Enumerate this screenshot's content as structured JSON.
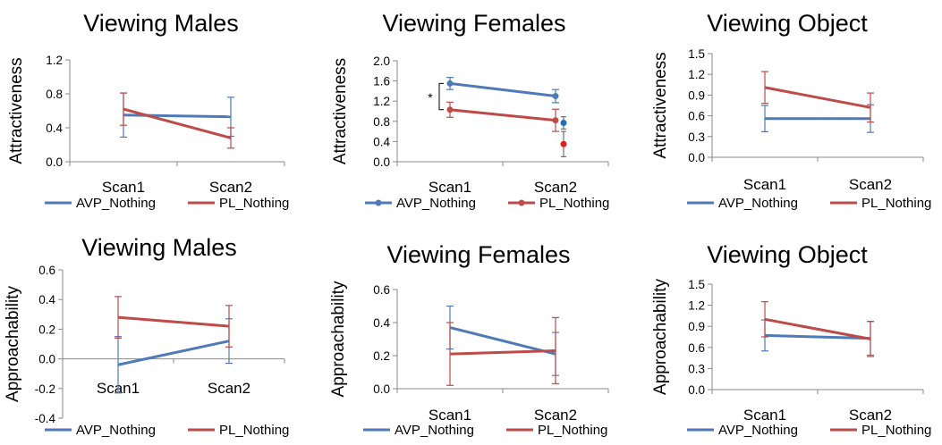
{
  "colors": {
    "avp": "#4F7AB8",
    "pl": "#BE4B48",
    "avp_extra": "#1F6FB5",
    "pl_extra": "#E0201B"
  },
  "chart_data": [
    {
      "type": "line",
      "title": "Viewing Males",
      "ylabel": "Attractiveness",
      "ylim": [
        0,
        1.2
      ],
      "yticks": [
        "0.0",
        "0.4",
        "0.8",
        "1.2"
      ],
      "markers": false,
      "categories": [
        "Scan1",
        "Scan2"
      ],
      "series": [
        {
          "name": "AVP_Nothing",
          "values": [
            0.55,
            0.53
          ],
          "error": [
            0.26,
            0.23
          ]
        },
        {
          "name": "PL_Nothing",
          "values": [
            0.62,
            0.28
          ],
          "error": [
            0.19,
            0.12
          ]
        }
      ]
    },
    {
      "type": "line",
      "title": "Viewing Females",
      "ylabel": "Attractiveness",
      "ylim": [
        0,
        2.0
      ],
      "yticks": [
        "0.0",
        "0.4",
        "0.8",
        "1.2",
        "1.6",
        "2.0"
      ],
      "markers": true,
      "categories": [
        "Scan1",
        "Scan2"
      ],
      "series": [
        {
          "name": "AVP_Nothing",
          "values": [
            1.55,
            1.3
          ],
          "error": [
            0.12,
            0.13
          ]
        },
        {
          "name": "PL_Nothing",
          "values": [
            1.03,
            0.82
          ],
          "error": [
            0.15,
            0.22
          ]
        }
      ],
      "extra_points": [
        {
          "series": "AVP_Nothing",
          "value": 0.77,
          "error": 0.12
        },
        {
          "series": "PL_Nothing",
          "value": 0.35,
          "error": 0.25
        }
      ],
      "annotation": "*"
    },
    {
      "type": "line",
      "title": "Viewing Object",
      "ylabel": "Attractiveness",
      "ylim": [
        0,
        1.5
      ],
      "yticks": [
        "0.0",
        "0.3",
        "0.6",
        "0.9",
        "1.2",
        "1.5"
      ],
      "markers": false,
      "categories": [
        "Scan1",
        "Scan2"
      ],
      "series": [
        {
          "name": "AVP_Nothing",
          "values": [
            0.56,
            0.56
          ],
          "error": [
            0.19,
            0.2
          ]
        },
        {
          "name": "PL_Nothing",
          "values": [
            1.01,
            0.72
          ],
          "error": [
            0.23,
            0.21
          ]
        }
      ]
    },
    {
      "type": "line",
      "title": "Viewing Males",
      "ylabel": "Approachability",
      "ylim": [
        -0.4,
        0.6
      ],
      "yticks": [
        "-0.4",
        "-0.2",
        "0.0",
        "0.2",
        "0.4",
        "0.6"
      ],
      "markers": false,
      "categories": [
        "Scan1",
        "Scan2"
      ],
      "series": [
        {
          "name": "AVP_Nothing",
          "values": [
            -0.04,
            0.12
          ],
          "error": [
            0.19,
            0.15
          ]
        },
        {
          "name": "PL_Nothing",
          "values": [
            0.28,
            0.22
          ],
          "error": [
            0.14,
            0.14
          ]
        }
      ]
    },
    {
      "type": "line",
      "title": "Viewing Females",
      "ylabel": "Approachability",
      "ylim": [
        0,
        0.6
      ],
      "yticks": [
        "0.0",
        "0.2",
        "0.4",
        "0.6"
      ],
      "markers": false,
      "categories": [
        "Scan1",
        "Scan2"
      ],
      "series": [
        {
          "name": "AVP_Nothing",
          "values": [
            0.37,
            0.21
          ],
          "error": [
            0.13,
            0.13
          ]
        },
        {
          "name": "PL_Nothing",
          "values": [
            0.21,
            0.23
          ],
          "error": [
            0.19,
            0.2
          ]
        }
      ]
    },
    {
      "type": "line",
      "title": "Viewing Object",
      "ylabel": "Approachability",
      "ylim": [
        0,
        1.5
      ],
      "yticks": [
        "0.0",
        "0.3",
        "0.6",
        "0.9",
        "1.2",
        "1.5"
      ],
      "markers": false,
      "categories": [
        "Scan1",
        "Scan2"
      ],
      "series": [
        {
          "name": "AVP_Nothing",
          "values": [
            0.77,
            0.73
          ],
          "error": [
            0.22,
            0.24
          ]
        },
        {
          "name": "PL_Nothing",
          "values": [
            1.0,
            0.72
          ],
          "error": [
            0.25,
            0.25
          ]
        }
      ]
    }
  ]
}
